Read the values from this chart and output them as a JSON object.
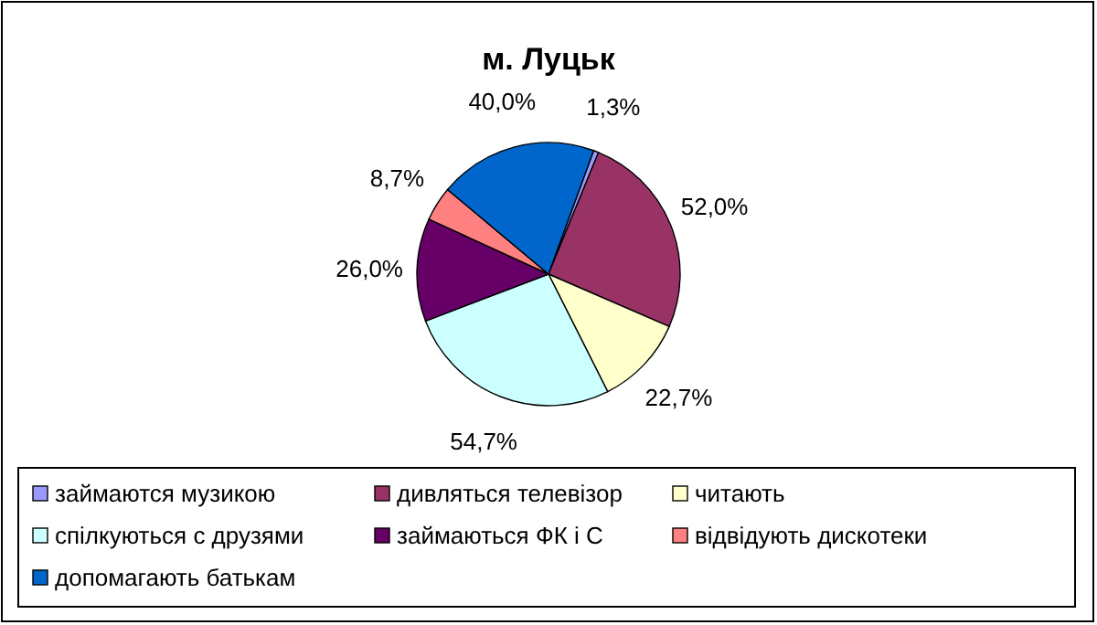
{
  "chart_data": {
    "type": "pie",
    "title": "м. Луцьк",
    "categories": [
      "займаются музикою",
      "дивляться телевізор",
      "читають",
      "спілкуються с друзями",
      "займаються ФК і С",
      "відвідують дискотеки",
      "допомагають батькам"
    ],
    "values": [
      1.3,
      52.0,
      22.7,
      54.7,
      26.0,
      8.7,
      40.0
    ],
    "value_labels": [
      "1,3%",
      "52,0%",
      "22,7%",
      "54,7%",
      "26,0%",
      "8,7%",
      "40,0%"
    ],
    "colors": [
      "#9999ff",
      "#993366",
      "#ffffcc",
      "#ccffff",
      "#660066",
      "#ff8080",
      "#0066cc"
    ],
    "legend": "bottom"
  }
}
